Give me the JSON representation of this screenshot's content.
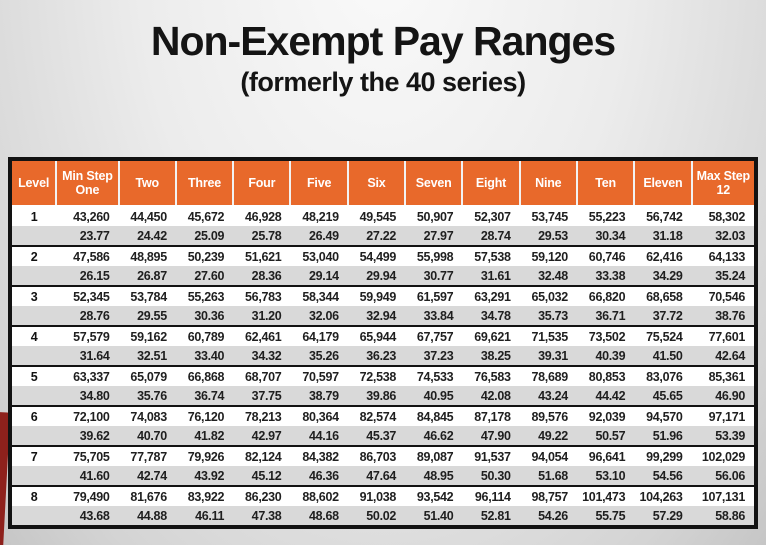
{
  "title": "Non-Exempt Pay Ranges",
  "subtitle": "(formerly the 40 series)",
  "colors": {
    "header_bg": "#E8692B",
    "header_text": "#FFFFFF",
    "annual_row_bg": "#FFFFFF",
    "hourly_row_bg": "#D9D9D9",
    "table_border": "#121212",
    "red_edge_accent": "#8E211C",
    "slide_bg": "#E0E0E0"
  },
  "chart_data": {
    "type": "table",
    "title": "Non-Exempt Pay Ranges",
    "subtitle": "(formerly the 40 series)",
    "headers": [
      "Level",
      "Min Step One",
      "Two",
      "Three",
      "Four",
      "Five",
      "Six",
      "Seven",
      "Eight",
      "Nine",
      "Ten",
      "Eleven",
      "Max Step 12"
    ],
    "levels": [
      {
        "level": "1",
        "annual": [
          "43,260",
          "44,450",
          "45,672",
          "46,928",
          "48,219",
          "49,545",
          "50,907",
          "52,307",
          "53,745",
          "55,223",
          "56,742",
          "58,302"
        ],
        "hourly": [
          "23.77",
          "24.42",
          "25.09",
          "25.78",
          "26.49",
          "27.22",
          "27.97",
          "28.74",
          "29.53",
          "30.34",
          "31.18",
          "32.03"
        ]
      },
      {
        "level": "2",
        "annual": [
          "47,586",
          "48,895",
          "50,239",
          "51,621",
          "53,040",
          "54,499",
          "55,998",
          "57,538",
          "59,120",
          "60,746",
          "62,416",
          "64,133"
        ],
        "hourly": [
          "26.15",
          "26.87",
          "27.60",
          "28.36",
          "29.14",
          "29.94",
          "30.77",
          "31.61",
          "32.48",
          "33.38",
          "34.29",
          "35.24"
        ]
      },
      {
        "level": "3",
        "annual": [
          "52,345",
          "53,784",
          "55,263",
          "56,783",
          "58,344",
          "59,949",
          "61,597",
          "63,291",
          "65,032",
          "66,820",
          "68,658",
          "70,546"
        ],
        "hourly": [
          "28.76",
          "29.55",
          "30.36",
          "31.20",
          "32.06",
          "32.94",
          "33.84",
          "34.78",
          "35.73",
          "36.71",
          "37.72",
          "38.76"
        ]
      },
      {
        "level": "4",
        "annual": [
          "57,579",
          "59,162",
          "60,789",
          "62,461",
          "64,179",
          "65,944",
          "67,757",
          "69,621",
          "71,535",
          "73,502",
          "75,524",
          "77,601"
        ],
        "hourly": [
          "31.64",
          "32.51",
          "33.40",
          "34.32",
          "35.26",
          "36.23",
          "37.23",
          "38.25",
          "39.31",
          "40.39",
          "41.50",
          "42.64"
        ]
      },
      {
        "level": "5",
        "annual": [
          "63,337",
          "65,079",
          "66,868",
          "68,707",
          "70,597",
          "72,538",
          "74,533",
          "76,583",
          "78,689",
          "80,853",
          "83,076",
          "85,361"
        ],
        "hourly": [
          "34.80",
          "35.76",
          "36.74",
          "37.75",
          "38.79",
          "39.86",
          "40.95",
          "42.08",
          "43.24",
          "44.42",
          "45.65",
          "46.90"
        ]
      },
      {
        "level": "6",
        "annual": [
          "72,100",
          "74,083",
          "76,120",
          "78,213",
          "80,364",
          "82,574",
          "84,845",
          "87,178",
          "89,576",
          "92,039",
          "94,570",
          "97,171"
        ],
        "hourly": [
          "39.62",
          "40.70",
          "41.82",
          "42.97",
          "44.16",
          "45.37",
          "46.62",
          "47.90",
          "49.22",
          "50.57",
          "51.96",
          "53.39"
        ]
      },
      {
        "level": "7",
        "annual": [
          "75,705",
          "77,787",
          "79,926",
          "82,124",
          "84,382",
          "86,703",
          "89,087",
          "91,537",
          "94,054",
          "96,641",
          "99,299",
          "102,029"
        ],
        "hourly": [
          "41.60",
          "42.74",
          "43.92",
          "45.12",
          "46.36",
          "47.64",
          "48.95",
          "50.30",
          "51.68",
          "53.10",
          "54.56",
          "56.06"
        ]
      },
      {
        "level": "8",
        "annual": [
          "79,490",
          "81,676",
          "83,922",
          "86,230",
          "88,602",
          "91,038",
          "93,542",
          "96,114",
          "98,757",
          "101,473",
          "104,263",
          "107,131"
        ],
        "hourly": [
          "43.68",
          "44.88",
          "46.11",
          "47.38",
          "48.68",
          "50.02",
          "51.40",
          "52.81",
          "54.26",
          "55.75",
          "57.29",
          "58.86"
        ]
      }
    ]
  }
}
